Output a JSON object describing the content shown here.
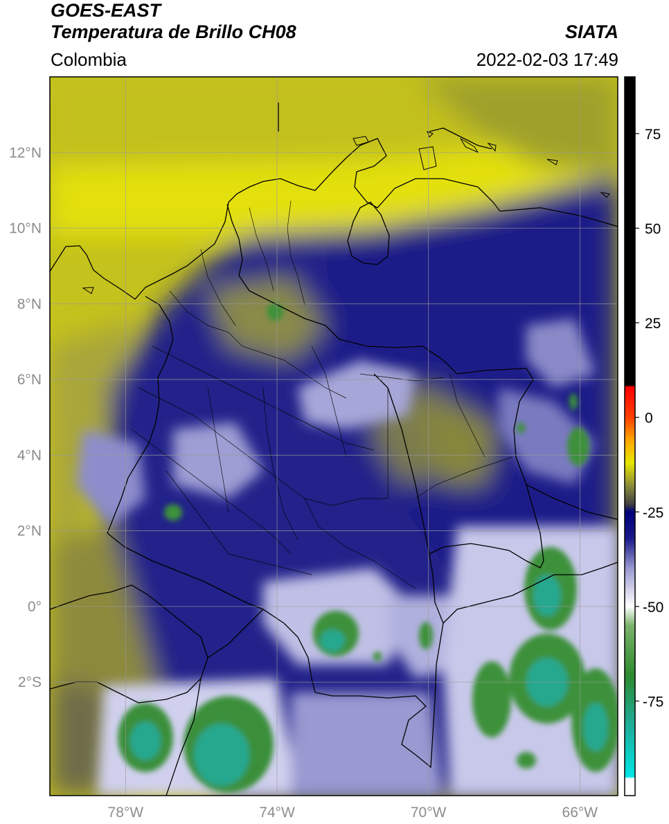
{
  "header": {
    "title_line1": "GOES-EAST",
    "title_line2": "Temperatura de Brillo CH08",
    "source": "SIATA",
    "region": "Colombia",
    "datetime": "2022-02-03 17:49"
  },
  "map": {
    "lon_range": [
      -80.0,
      -65.0
    ],
    "lat_range": [
      -5.0,
      14.0
    ],
    "gridlines": true,
    "lon_ticks": [
      {
        "value": -78,
        "label": "78°W"
      },
      {
        "value": -74,
        "label": "74°W"
      },
      {
        "value": -70,
        "label": "70°W"
      },
      {
        "value": -66,
        "label": "66°W"
      }
    ],
    "lat_ticks": [
      {
        "value": 12,
        "label": "12°N"
      },
      {
        "value": 10,
        "label": "10°N"
      },
      {
        "value": 8,
        "label": "8°N"
      },
      {
        "value": 6,
        "label": "6°N"
      },
      {
        "value": 4,
        "label": "4°N"
      },
      {
        "value": 2,
        "label": "2°N"
      },
      {
        "value": 0,
        "label": "0°"
      },
      {
        "value": -2,
        "label": "2°S"
      }
    ]
  },
  "colorbar": {
    "range": [
      -100,
      90
    ],
    "ticks": [
      {
        "value": 75,
        "label": "75"
      },
      {
        "value": 50,
        "label": "50"
      },
      {
        "value": 25,
        "label": "25"
      },
      {
        "value": 0,
        "label": "0"
      },
      {
        "value": -25,
        "label": "-25"
      },
      {
        "value": -50,
        "label": "-50"
      },
      {
        "value": -75,
        "label": "-75"
      }
    ],
    "stops": [
      {
        "value": -100,
        "color": "#ffffff"
      },
      {
        "value": -95.5,
        "color": "#ffffff"
      },
      {
        "value": -95,
        "color": "#00e5e5"
      },
      {
        "value": -80,
        "color": "#1fa890"
      },
      {
        "value": -68,
        "color": "#2e8b2e"
      },
      {
        "value": -55,
        "color": "#7bb36b"
      },
      {
        "value": -50,
        "color": "#ffffff"
      },
      {
        "value": -40,
        "color": "#9a9ad0"
      },
      {
        "value": -32,
        "color": "#1a1a8a"
      },
      {
        "value": -25,
        "color": "#00007a"
      },
      {
        "value": -23,
        "color": "#404040"
      },
      {
        "value": -18,
        "color": "#8c8c3c"
      },
      {
        "value": -12,
        "color": "#e6e600"
      },
      {
        "value": -6,
        "color": "#ffa500"
      },
      {
        "value": 0,
        "color": "#ff4000"
      },
      {
        "value": 8,
        "color": "#ff0000"
      },
      {
        "value": 8.5,
        "color": "#000000"
      },
      {
        "value": 90,
        "color": "#000000"
      }
    ]
  },
  "imagery_colors": {
    "warm_yellow": "#e6e600",
    "olive": "#8c8c3c",
    "deep_blue": "#00007a",
    "lavender": "#9a9ad0",
    "cold_white": "#ffffff",
    "cold_green": "#2e8b2e",
    "coldest_teal": "#1fa890"
  }
}
